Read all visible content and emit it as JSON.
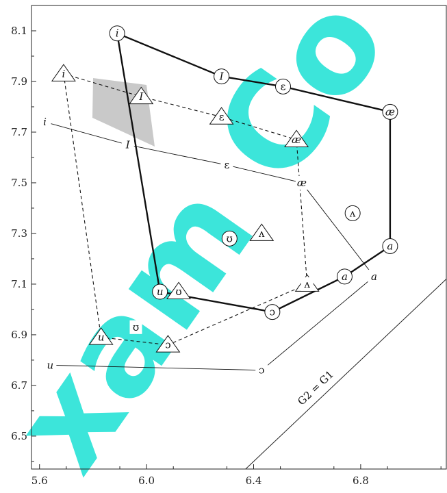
{
  "chart_data": {
    "type": "scatter",
    "xlim": [
      5.57,
      7.12
    ],
    "ylim": [
      6.37,
      8.2
    ],
    "x_ticks": [
      "5.6",
      "6.0",
      "6.4",
      "6.8"
    ],
    "y_ticks": [
      "6.5",
      "6.7",
      "6.9",
      "7.1",
      "7.3",
      "7.5",
      "7.7",
      "7.9",
      "8.1"
    ],
    "x_tick_values": [
      5.6,
      6.0,
      6.4,
      6.8
    ],
    "y_tick_values": [
      6.5,
      6.7,
      6.9,
      7.1,
      7.3,
      7.5,
      7.7,
      7.9,
      8.1
    ],
    "grid": false,
    "diagonal_label": "G2 = G1",
    "series": [
      {
        "marker": "circle",
        "stroke": "solid-bold",
        "closed": true,
        "points": [
          {
            "label": "i",
            "x": 5.89,
            "y": 8.09
          },
          {
            "label": "I",
            "x": 6.28,
            "y": 7.92
          },
          {
            "label": "ɛ",
            "x": 6.51,
            "y": 7.88
          },
          {
            "label": "æ",
            "x": 6.91,
            "y": 7.78
          },
          {
            "label": "a",
            "x": 6.91,
            "y": 7.25
          },
          {
            "label": "a",
            "x": 6.74,
            "y": 7.13
          },
          {
            "label": "ɔ",
            "x": 6.47,
            "y": 6.99
          },
          {
            "label": "u",
            "x": 6.05,
            "y": 7.07
          }
        ],
        "extra": [
          {
            "label": "ʌ",
            "x": 6.77,
            "y": 7.38
          },
          {
            "label": "ʊ",
            "x": 6.31,
            "y": 7.28
          }
        ]
      },
      {
        "marker": "triangle",
        "stroke": "dashed",
        "closed": true,
        "points": [
          {
            "label": "i",
            "x": 5.69,
            "y": 7.93
          },
          {
            "label": "I",
            "x": 5.98,
            "y": 7.84
          },
          {
            "label": "ɛ",
            "x": 6.28,
            "y": 7.76
          },
          {
            "label": "æ",
            "x": 6.56,
            "y": 7.67
          },
          {
            "label": "a",
            "x": 6.6,
            "y": 7.1
          },
          {
            "label": "ɔ",
            "x": 6.08,
            "y": 6.86
          },
          {
            "label": "u",
            "x": 5.83,
            "y": 6.89
          }
        ],
        "extra": [
          {
            "label": "ʌ",
            "x": 6.43,
            "y": 7.3
          },
          {
            "label": "ʊ",
            "x": 6.12,
            "y": 7.07
          }
        ]
      },
      {
        "marker": "none",
        "stroke": "thin",
        "closed": false,
        "points": [
          {
            "label": "i",
            "x": 5.62,
            "y": 7.74
          },
          {
            "label": "I",
            "x": 5.93,
            "y": 7.65
          },
          {
            "label": "ɛ",
            "x": 6.3,
            "y": 7.57
          },
          {
            "label": "æ",
            "x": 6.58,
            "y": 7.5
          },
          {
            "label": "a",
            "x": 6.85,
            "y": 7.13
          },
          {
            "label": "ɔ",
            "x": 6.43,
            "y": 6.76
          },
          {
            "label": "u",
            "x": 5.64,
            "y": 6.78
          }
        ],
        "extra": [
          {
            "label": "ʌ",
            "x": 6.6,
            "y": 7.1
          },
          {
            "label": "ʊ",
            "x": 5.96,
            "y": 6.93
          }
        ]
      }
    ]
  }
}
